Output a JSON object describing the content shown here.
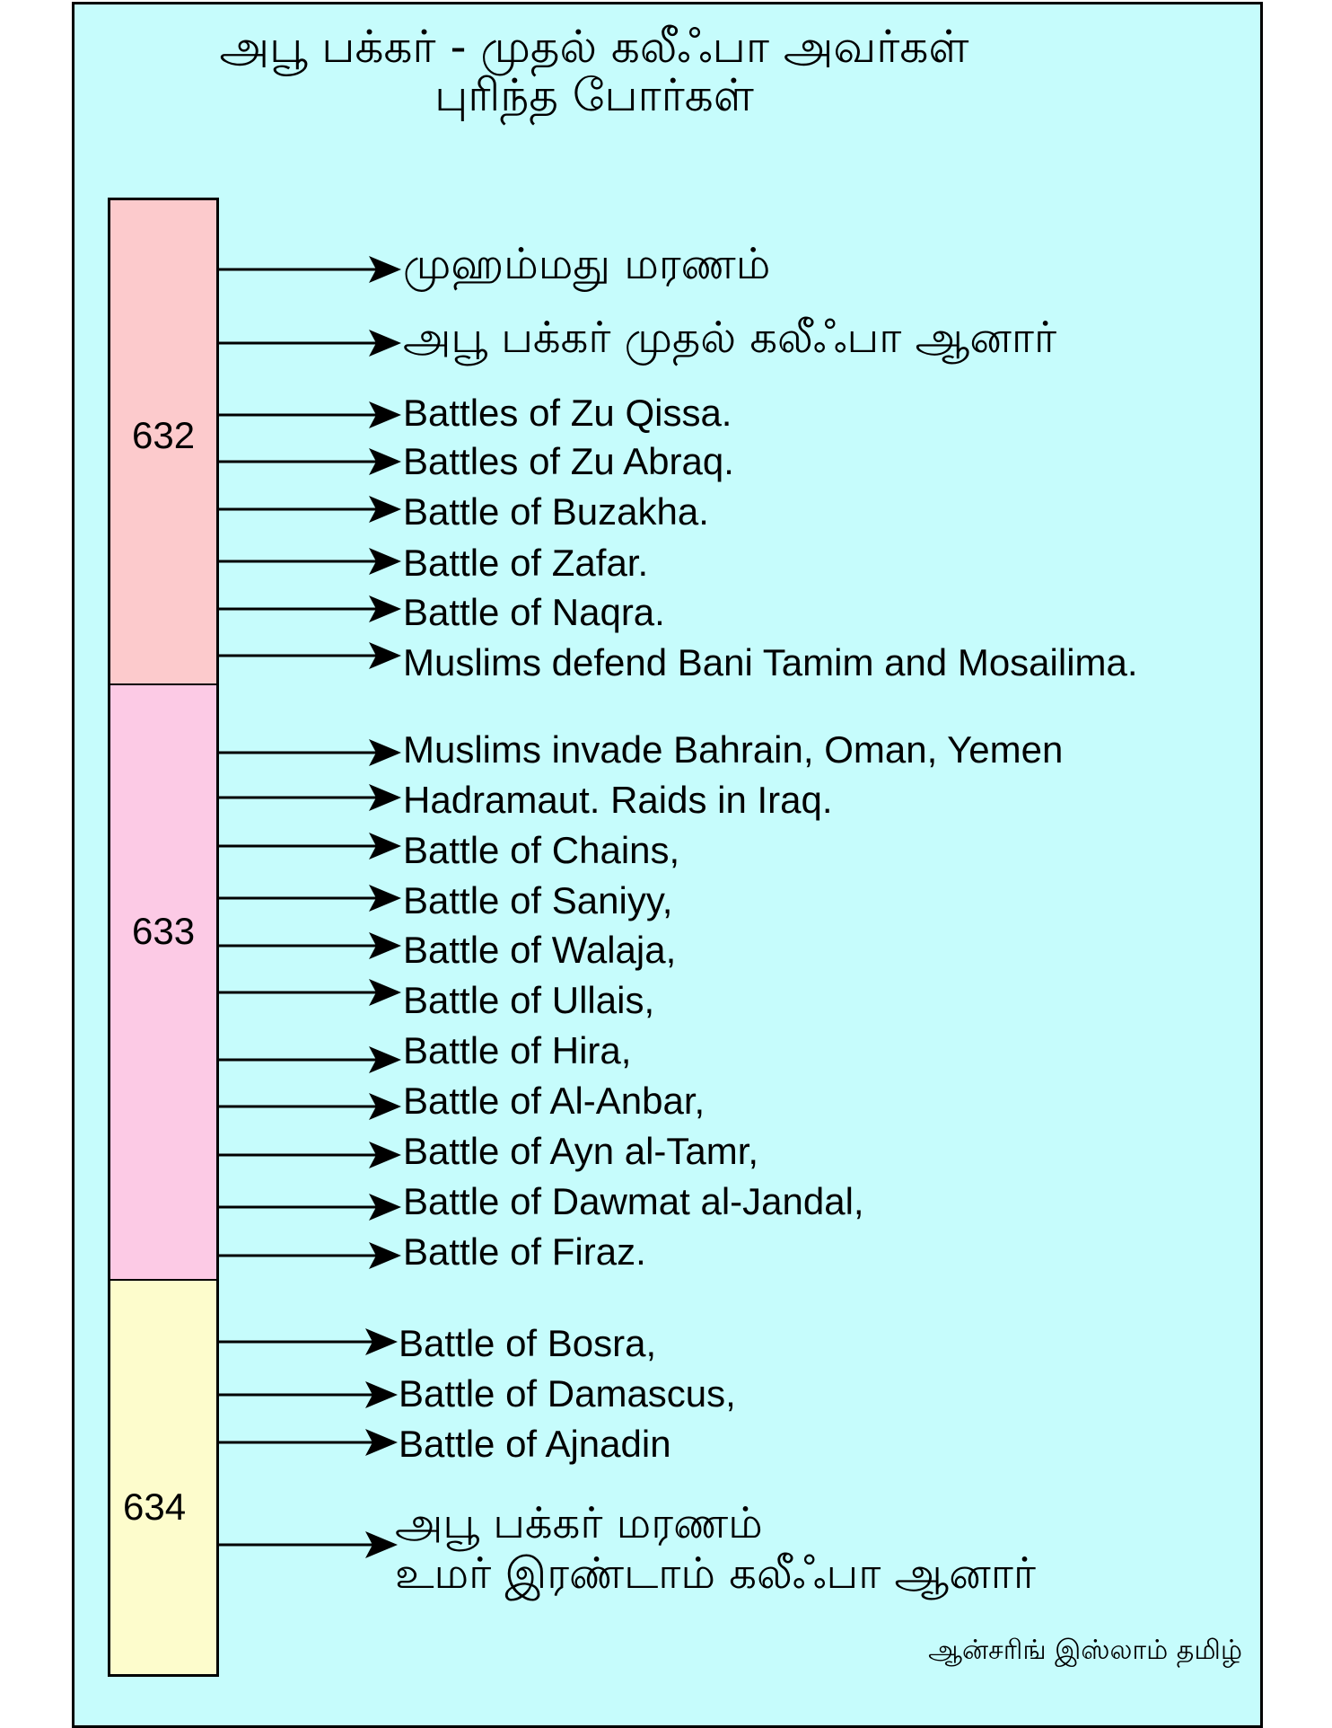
{
  "title": {
    "line1": "அபூ பக்கர் - முதல் கலீஃபா அவர்கள்",
    "line2": "புரிந்த போர்கள்"
  },
  "colors": {
    "background": "#c6fcfc",
    "year_632": "#fccacc",
    "year_633": "#fccae5",
    "year_634": "#fdfccc",
    "border": "#000000"
  },
  "timeline": [
    {
      "year": "632",
      "events": [
        {
          "text": "முஹம்மது மரணம்",
          "lang": "ta"
        },
        {
          "text": "அபூ பக்கர் முதல் கலீஃபா ஆனார்",
          "lang": "ta"
        },
        {
          "text": "Battles of Zu Qissa.",
          "lang": "en"
        },
        {
          "text": "Battles of Zu Abraq.",
          "lang": "en"
        },
        {
          "text": "Battle of Buzakha.",
          "lang": "en"
        },
        {
          "text": "Battle of Zafar.",
          "lang": "en"
        },
        {
          "text": "Battle of Naqra.",
          "lang": "en"
        },
        {
          "text": "Muslims defend Bani Tamim and Mosailima.",
          "lang": "en"
        }
      ]
    },
    {
      "year": "633",
      "events": [
        {
          "text": "Muslims invade Bahrain, Oman, Yemen",
          "lang": "en"
        },
        {
          "text": "Hadramaut. Raids in Iraq.",
          "lang": "en"
        },
        {
          "text": "Battle of Chains,",
          "lang": "en"
        },
        {
          "text": "Battle of Saniyy,",
          "lang": "en"
        },
        {
          "text": "Battle of Walaja,",
          "lang": "en"
        },
        {
          "text": "Battle of Ullais,",
          "lang": "en"
        },
        {
          "text": "Battle of Hira,",
          "lang": "en"
        },
        {
          "text": "Battle of Al-Anbar,",
          "lang": "en"
        },
        {
          "text": "Battle of Ayn al-Tamr,",
          "lang": "en"
        },
        {
          "text": "Battle of Dawmat al-Jandal,",
          "lang": "en"
        },
        {
          "text": "Battle of Firaz.",
          "lang": "en"
        }
      ]
    },
    {
      "year": "634",
      "events": [
        {
          "text": "Battle of Bosra,",
          "lang": "en"
        },
        {
          "text": "Battle of Damascus,",
          "lang": "en"
        },
        {
          "text": "Battle of Ajnadin",
          "lang": "en"
        },
        {
          "text": "அபூ பக்கர் மரணம்\nஉமர் இரண்டாம் கலீஃபா ஆனார்",
          "lang": "ta"
        }
      ]
    }
  ],
  "credit": "ஆன்சரிங் இஸ்லாம் தமிழ்"
}
